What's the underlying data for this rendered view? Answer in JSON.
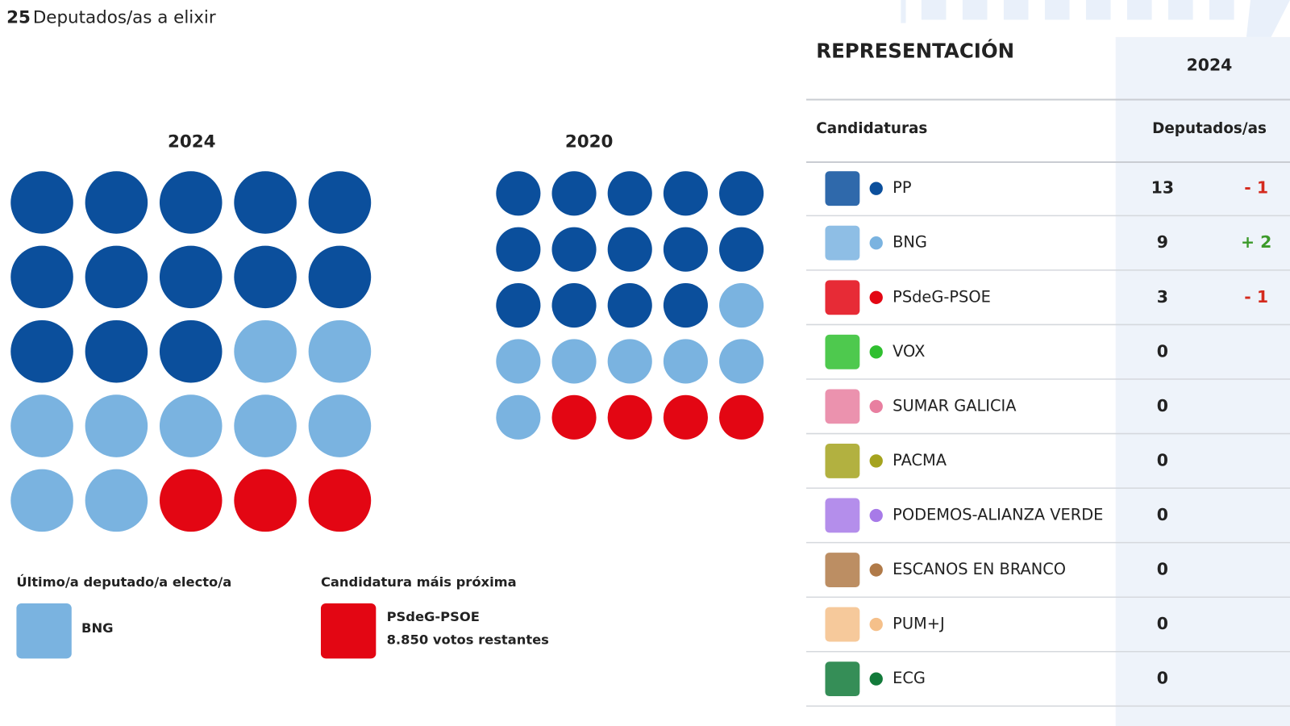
{
  "header": {
    "seats": "25",
    "label": "Deputados/as a elixir"
  },
  "dot_charts": [
    {
      "year": "2024",
      "seats": [
        13,
        9,
        3
      ]
    },
    {
      "year": "2020",
      "seats": [
        14,
        7,
        4
      ]
    }
  ],
  "last_elected": {
    "title": "Último/a deputado/a electo/a",
    "party": "BNG"
  },
  "closest": {
    "title": "Candidatura máis próxima",
    "party": "PSdeG-PSOE",
    "votes": "8.850 votos restantes"
  },
  "table": {
    "title": "REPRESENTACIÓN",
    "year": "2024",
    "columns": [
      "Candidaturas",
      "Deputados/as"
    ],
    "rows": [
      {
        "name": "PP",
        "color": "#0b4f9c",
        "seats": 13,
        "change": "- 1",
        "change_color": "#d42a1e"
      },
      {
        "name": "BNG",
        "color": "#7ab3e0",
        "seats": 9,
        "change": "+ 2",
        "change_color": "#3c9a2a"
      },
      {
        "name": "PSdeG-PSOE",
        "color": "#e30613",
        "seats": 3,
        "change": "- 1",
        "change_color": "#d42a1e"
      },
      {
        "name": "VOX",
        "color": "#2fbf2f",
        "seats": 0
      },
      {
        "name": "SUMAR GALICIA",
        "color": "#e87fa0",
        "seats": 0
      },
      {
        "name": "PACMA",
        "color": "#a5a31e",
        "seats": 0
      },
      {
        "name": "PODEMOS-ALIANZA VERDE",
        "color": "#a77ae8",
        "seats": 0
      },
      {
        "name": "ESCANOS EN BRANCO",
        "color": "#b07a48",
        "seats": 0
      },
      {
        "name": "PUM+J",
        "color": "#f5c08a",
        "seats": 0
      },
      {
        "name": "ECG",
        "color": "#127a3a",
        "seats": 0
      }
    ]
  }
}
